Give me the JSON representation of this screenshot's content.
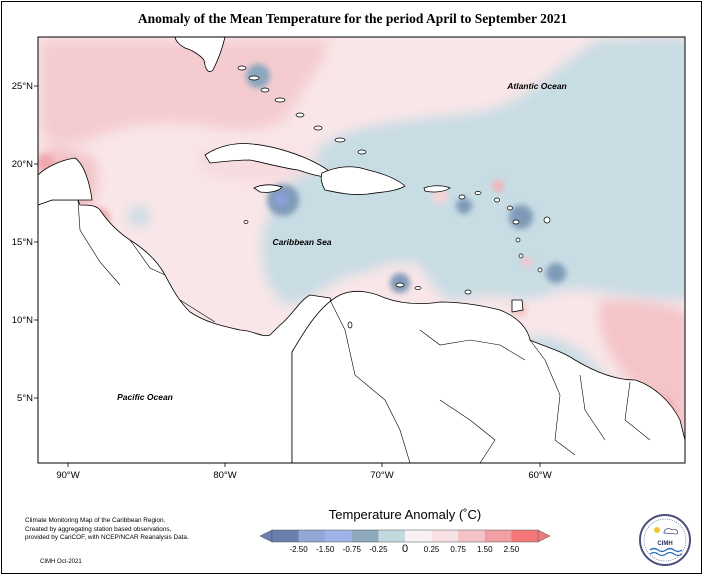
{
  "title": "Anomaly of the Mean Temperature for the period April to September 2021",
  "map": {
    "labels": {
      "atlantic": "Atlantic Ocean",
      "caribbean": "Caribbean Sea",
      "pacific": "Pacific Ocean"
    },
    "lat_ticks": [
      "25°N",
      "20°N",
      "15°N",
      "10°N",
      "5°N"
    ],
    "lon_ticks": [
      "90°W",
      "80°W",
      "70°W",
      "60°W"
    ],
    "colors": {
      "ocean_cool": "#c8dce4",
      "warm_light": "#f8e4e6",
      "warm_mid": "#f4c8cc",
      "warm_strong": "#f0a8ae",
      "cool_mid": "#9fb8cc",
      "cool_strong": "#6f8fae",
      "land": "#ffffff"
    }
  },
  "legend": {
    "title": "Temperature Anomaly (˚C)",
    "ticks": [
      "-2.50",
      "-1.50",
      "-0.75",
      "-0.25",
      "0",
      "0.25",
      "0.75",
      "1.50",
      "2.50"
    ],
    "colors": [
      "#6a7fae",
      "#93a6d8",
      "#9fb3e8",
      "#8ea8c0",
      "#c4d8e0",
      "#f8f0f2",
      "#f8e0e4",
      "#f4c4c8",
      "#f0a0a4",
      "#f47878"
    ]
  },
  "footnote": {
    "line1": "Climate Monitoring Map of the Caribbean Region.",
    "line2": "Created by aggregating station based observations,",
    "line3": "provided by CariCOF, with NCEP/NCAR Reanalysis Data.",
    "credit": "CIMH Oct-2021"
  },
  "logo": {
    "text": "CIMH"
  }
}
